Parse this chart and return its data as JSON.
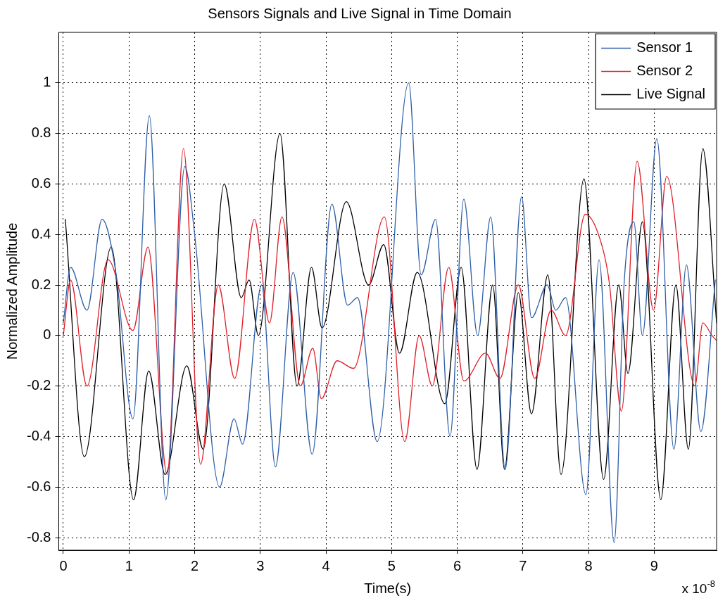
{
  "chart_data": {
    "type": "line",
    "title": "Sensors Signals and Live Signal in Time Domain",
    "xlabel": "Time(s)",
    "ylabel": "Normalized Amplitude",
    "annotations": [
      "x 10$^{-8}$"
    ],
    "xlim": [
      -0.07,
      9.95
    ],
    "xticks": [
      0,
      1,
      2,
      3,
      4,
      5,
      6,
      7,
      8,
      9
    ],
    "ylim": [
      -0.85,
      1.2
    ],
    "yticks": [
      -0.8,
      -0.6,
      -0.4,
      -0.2,
      0,
      0.2,
      0.4,
      0.6,
      0.8,
      1
    ],
    "grid": true,
    "legend": "top right",
    "marker": "none",
    "line_style": "solid",
    "series": [
      {
        "name": "Sensor 1",
        "color": "#2f5fa8",
        "x": [
          0,
          0.11,
          0.36,
          0.59,
          0.8,
          1.06,
          1.31,
          1.56,
          1.85,
          2.0,
          2.38,
          2.6,
          2.73,
          3.02,
          3.23,
          3.5,
          3.79,
          4.09,
          4.33,
          4.48,
          4.78,
          5.26,
          5.45,
          5.67,
          5.89,
          6.1,
          6.31,
          6.51,
          6.73,
          6.98,
          7.13,
          7.37,
          7.5,
          7.65,
          7.96,
          8.16,
          8.39,
          8.54,
          8.69,
          8.82,
          9.04,
          9.3,
          9.49,
          9.71,
          9.93
        ],
        "values": [
          0.05,
          0.27,
          0.1,
          0.46,
          0.25,
          -0.33,
          0.87,
          -0.65,
          0.67,
          0.4,
          -0.6,
          -0.33,
          -0.43,
          0.2,
          -0.52,
          0.25,
          -0.47,
          0.52,
          0.12,
          0.15,
          -0.42,
          1.0,
          0.24,
          0.46,
          -0.4,
          0.54,
          0.0,
          0.47,
          -0.53,
          0.55,
          0.07,
          0.2,
          0.1,
          0.15,
          -0.63,
          0.3,
          -0.82,
          0.2,
          0.45,
          0.0,
          0.78,
          -0.45,
          0.28,
          -0.38,
          0.22
        ]
      },
      {
        "name": "Sensor 2",
        "color": "#e0202a",
        "x": [
          0,
          0.11,
          0.36,
          0.68,
          1.06,
          1.29,
          1.58,
          1.83,
          2.09,
          2.36,
          2.61,
          2.91,
          3.14,
          3.33,
          3.61,
          3.8,
          3.93,
          4.17,
          4.42,
          4.89,
          5.2,
          5.42,
          5.62,
          5.87,
          6.1,
          6.43,
          6.65,
          6.93,
          7.18,
          7.43,
          7.65,
          7.95,
          8.21,
          8.32,
          8.5,
          8.74,
          8.99,
          9.19,
          9.62,
          9.74,
          9.88,
          9.95
        ],
        "values": [
          0.0,
          0.22,
          -0.2,
          0.3,
          0.02,
          0.35,
          -0.55,
          0.74,
          -0.51,
          0.2,
          -0.17,
          0.46,
          0.05,
          0.47,
          -0.2,
          -0.05,
          -0.25,
          -0.1,
          -0.13,
          0.47,
          -0.42,
          0.0,
          -0.2,
          0.27,
          -0.18,
          -0.07,
          -0.17,
          0.2,
          -0.17,
          0.1,
          0.0,
          0.48,
          0.35,
          0.2,
          -0.3,
          0.69,
          0.1,
          0.63,
          -0.2,
          0.05,
          0.0,
          -0.02
        ]
      },
      {
        "name": "Live Signal",
        "color": "#000000",
        "x": [
          0.03,
          0.32,
          0.73,
          1.07,
          1.3,
          1.55,
          1.88,
          2.13,
          2.45,
          2.71,
          2.83,
          2.97,
          3.3,
          3.56,
          3.78,
          3.94,
          4.31,
          4.65,
          4.88,
          5.12,
          5.39,
          5.81,
          6.06,
          6.3,
          6.54,
          6.72,
          6.93,
          7.13,
          7.38,
          7.58,
          7.93,
          8.23,
          8.46,
          8.6,
          8.82,
          9.1,
          9.33,
          9.52,
          9.74,
          9.95
        ],
        "values": [
          0.46,
          -0.48,
          0.35,
          -0.65,
          -0.14,
          -0.55,
          -0.12,
          -0.45,
          0.6,
          0.15,
          0.22,
          0.0,
          0.8,
          -0.2,
          0.27,
          0.03,
          0.53,
          0.2,
          0.36,
          -0.07,
          0.25,
          -0.27,
          0.27,
          -0.53,
          0.2,
          -0.53,
          0.17,
          -0.31,
          0.24,
          -0.55,
          0.62,
          -0.57,
          0.2,
          -0.15,
          0.45,
          -0.65,
          0.2,
          -0.45,
          0.74,
          0.05
        ]
      }
    ]
  }
}
